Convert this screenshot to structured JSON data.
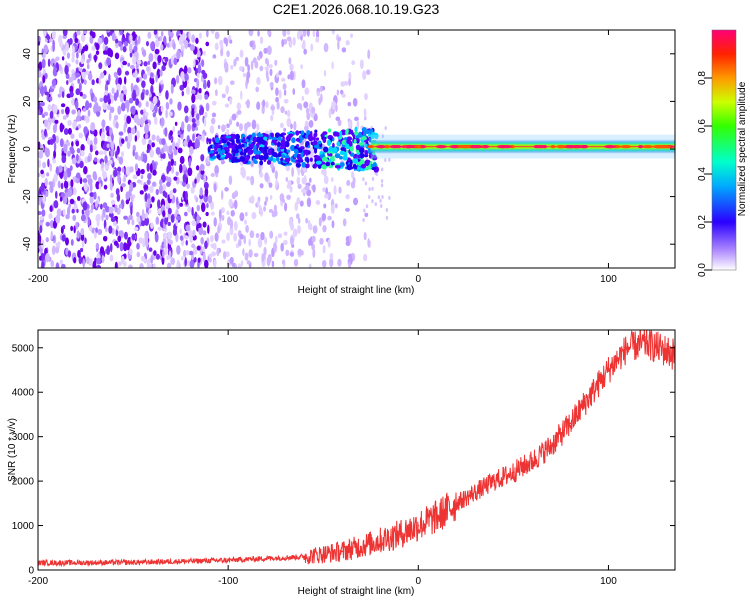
{
  "title": "C2E1.2026.068.10.19.G23",
  "chart_data": [
    {
      "type": "heatmap",
      "xlabel": "Height of straight line (km)",
      "ylabel": "Frequency (Hz)",
      "xlim": [
        -200,
        135
      ],
      "ylim": [
        -50,
        50
      ],
      "x_ticks": [
        -200,
        -100,
        0,
        100
      ],
      "x_tick_labels": [
        "-200",
        "-100",
        "0",
        "100"
      ],
      "y_ticks": [
        -40,
        -20,
        0,
        20,
        40
      ],
      "y_tick_labels": [
        "-40",
        "-20",
        "0",
        "20",
        "40"
      ],
      "colorbar": {
        "label": "Normalized spectral amplitude",
        "range": [
          0,
          1
        ],
        "ticks": [
          0.0,
          0.2,
          0.4,
          0.6,
          0.8
        ],
        "tick_labels": [
          "0.0",
          "0.2",
          "0.4",
          "0.6",
          "0.8"
        ]
      },
      "features": [
        {
          "name": "noise_speckle",
          "x_range": [
            -200,
            -25
          ],
          "freq_range": [
            -50,
            50
          ],
          "amplitude": 0.05
        },
        {
          "name": "scattered_signal",
          "x_range": [
            -110,
            -20
          ],
          "center_freq": 0,
          "amplitude": 0.3
        },
        {
          "name": "steady_carrier",
          "x_range": [
            -25,
            135
          ],
          "center_freq": 1,
          "amplitude": 0.9
        }
      ]
    },
    {
      "type": "line",
      "xlabel": "Height of straight line (km)",
      "ylabel": "SNR (10 * v/v)",
      "xlim": [
        -200,
        135
      ],
      "ylim": [
        0,
        5400
      ],
      "x_ticks": [
        -200,
        -100,
        0,
        100
      ],
      "x_tick_labels": [
        "-200",
        "-100",
        "0",
        "100"
      ],
      "y_ticks": [
        0,
        1000,
        2000,
        3000,
        4000,
        5000
      ],
      "y_tick_labels": [
        "0",
        "1000",
        "2000",
        "3000",
        "4000",
        "5000"
      ],
      "series": [
        {
          "name": "SNR",
          "color": "#ee3333",
          "x": [
            -200,
            -150,
            -100,
            -60,
            -40,
            -25,
            -10,
            0,
            10,
            20,
            30,
            40,
            50,
            60,
            70,
            80,
            90,
            100,
            110,
            120,
            135
          ],
          "y": [
            160,
            170,
            220,
            300,
            420,
            600,
            800,
            1000,
            1200,
            1500,
            1750,
            2000,
            2200,
            2450,
            2800,
            3300,
            3900,
            4500,
            5000,
            5100,
            4850
          ]
        }
      ]
    }
  ]
}
